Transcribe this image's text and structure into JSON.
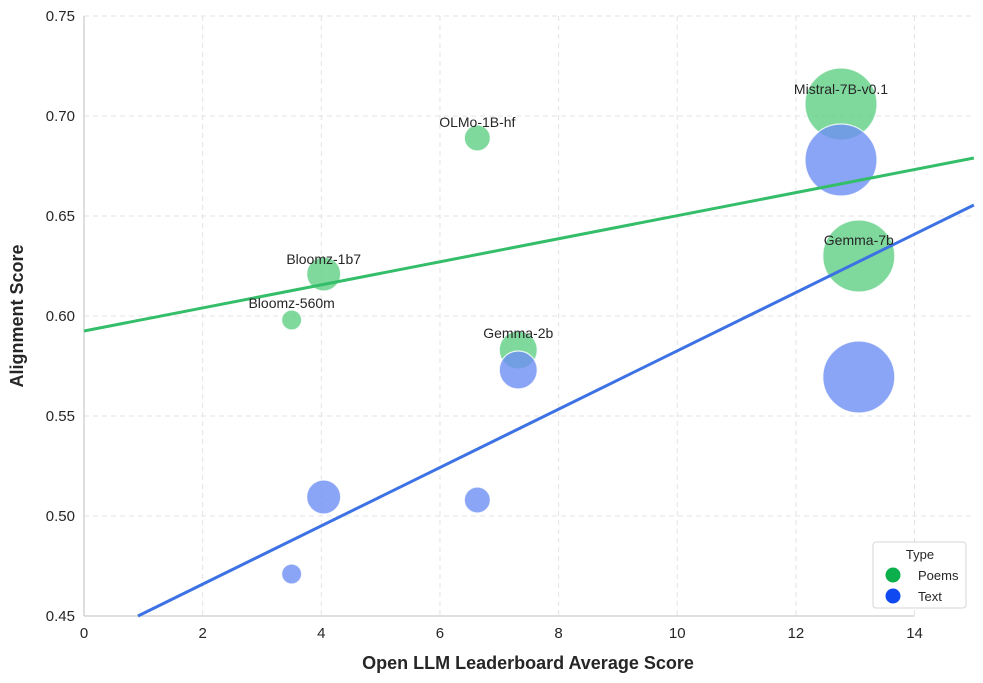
{
  "chart_data": {
    "type": "scatter",
    "title": "",
    "xlabel": "Open LLM Leaderboard Average Score",
    "ylabel": "Alignment Score",
    "xlim": [
      0,
      15
    ],
    "ylim": [
      0.45,
      0.75
    ],
    "xticks": [
      "0",
      "2",
      "4",
      "6",
      "8",
      "10",
      "12",
      "14"
    ],
    "xtick_values": [
      0,
      2,
      4,
      6,
      8,
      10,
      12,
      14
    ],
    "yticks": [
      "0.45",
      "0.50",
      "0.55",
      "0.60",
      "0.65",
      "0.70",
      "0.75"
    ],
    "ytick_values": [
      0.45,
      0.5,
      0.55,
      0.6,
      0.65,
      0.7,
      0.75
    ],
    "grid": true,
    "legend": {
      "title": "Type",
      "placement": "bottom-right",
      "entries": [
        {
          "label": "Poems",
          "color": "#0bb04c"
        },
        {
          "label": "Text",
          "color": "#1149f1"
        }
      ]
    },
    "series": [
      {
        "name": "Poems",
        "color": "#5fcf84",
        "line_color": "#35be6a",
        "points": [
          {
            "model": "Bloomz-560m",
            "x": 3.5,
            "y": 0.598,
            "size": 0.56
          },
          {
            "model": "Bloomz-1b7",
            "x": 4.04,
            "y": 0.621,
            "size": 1.7
          },
          {
            "model": "OLMo-1B-hf",
            "x": 6.63,
            "y": 0.689,
            "size": 1.2
          },
          {
            "model": "Gemma-2b",
            "x": 7.32,
            "y": 0.583,
            "size": 2.5
          },
          {
            "model": "Mistral-7B-v0.1",
            "x": 12.76,
            "y": 0.706,
            "size": 7.2
          },
          {
            "model": "Gemma-7b",
            "x": 13.06,
            "y": 0.63,
            "size": 8.5
          }
        ],
        "trend": {
          "x": [
            0,
            15
          ],
          "y": [
            0.5925,
            0.679
          ]
        }
      },
      {
        "name": "Text",
        "color": "#6e8ff4",
        "line_color": "#3c72e4",
        "points": [
          {
            "model": "Bloomz-560m",
            "x": 3.5,
            "y": 0.471,
            "size": 0.56
          },
          {
            "model": "Bloomz-1b7",
            "x": 4.04,
            "y": 0.5095,
            "size": 1.7
          },
          {
            "model": "OLMo-1B-hf",
            "x": 6.63,
            "y": 0.508,
            "size": 1.2
          },
          {
            "model": "Gemma-2b",
            "x": 7.32,
            "y": 0.573,
            "size": 2.5
          },
          {
            "model": "Mistral-7B-v0.1",
            "x": 12.76,
            "y": 0.678,
            "size": 7.2
          },
          {
            "model": "Gemma-7b",
            "x": 13.06,
            "y": 0.5695,
            "size": 8.5
          }
        ],
        "trend": {
          "x": [
            0.91,
            15
          ],
          "y": [
            0.45,
            0.6555
          ]
        }
      }
    ],
    "annotations": [
      {
        "text": "Bloomz-560m",
        "x": 3.5,
        "y": 0.598
      },
      {
        "text": "Bloomz-1b7",
        "x": 4.04,
        "y": 0.621
      },
      {
        "text": "OLMo-1B-hf",
        "x": 6.63,
        "y": 0.689
      },
      {
        "text": "Gemma-2b",
        "x": 7.32,
        "y": 0.583
      },
      {
        "text": "Mistral-7B-v0.1",
        "x": 12.76,
        "y": 0.706
      },
      {
        "text": "Gemma-7b",
        "x": 13.06,
        "y": 0.63
      }
    ]
  }
}
